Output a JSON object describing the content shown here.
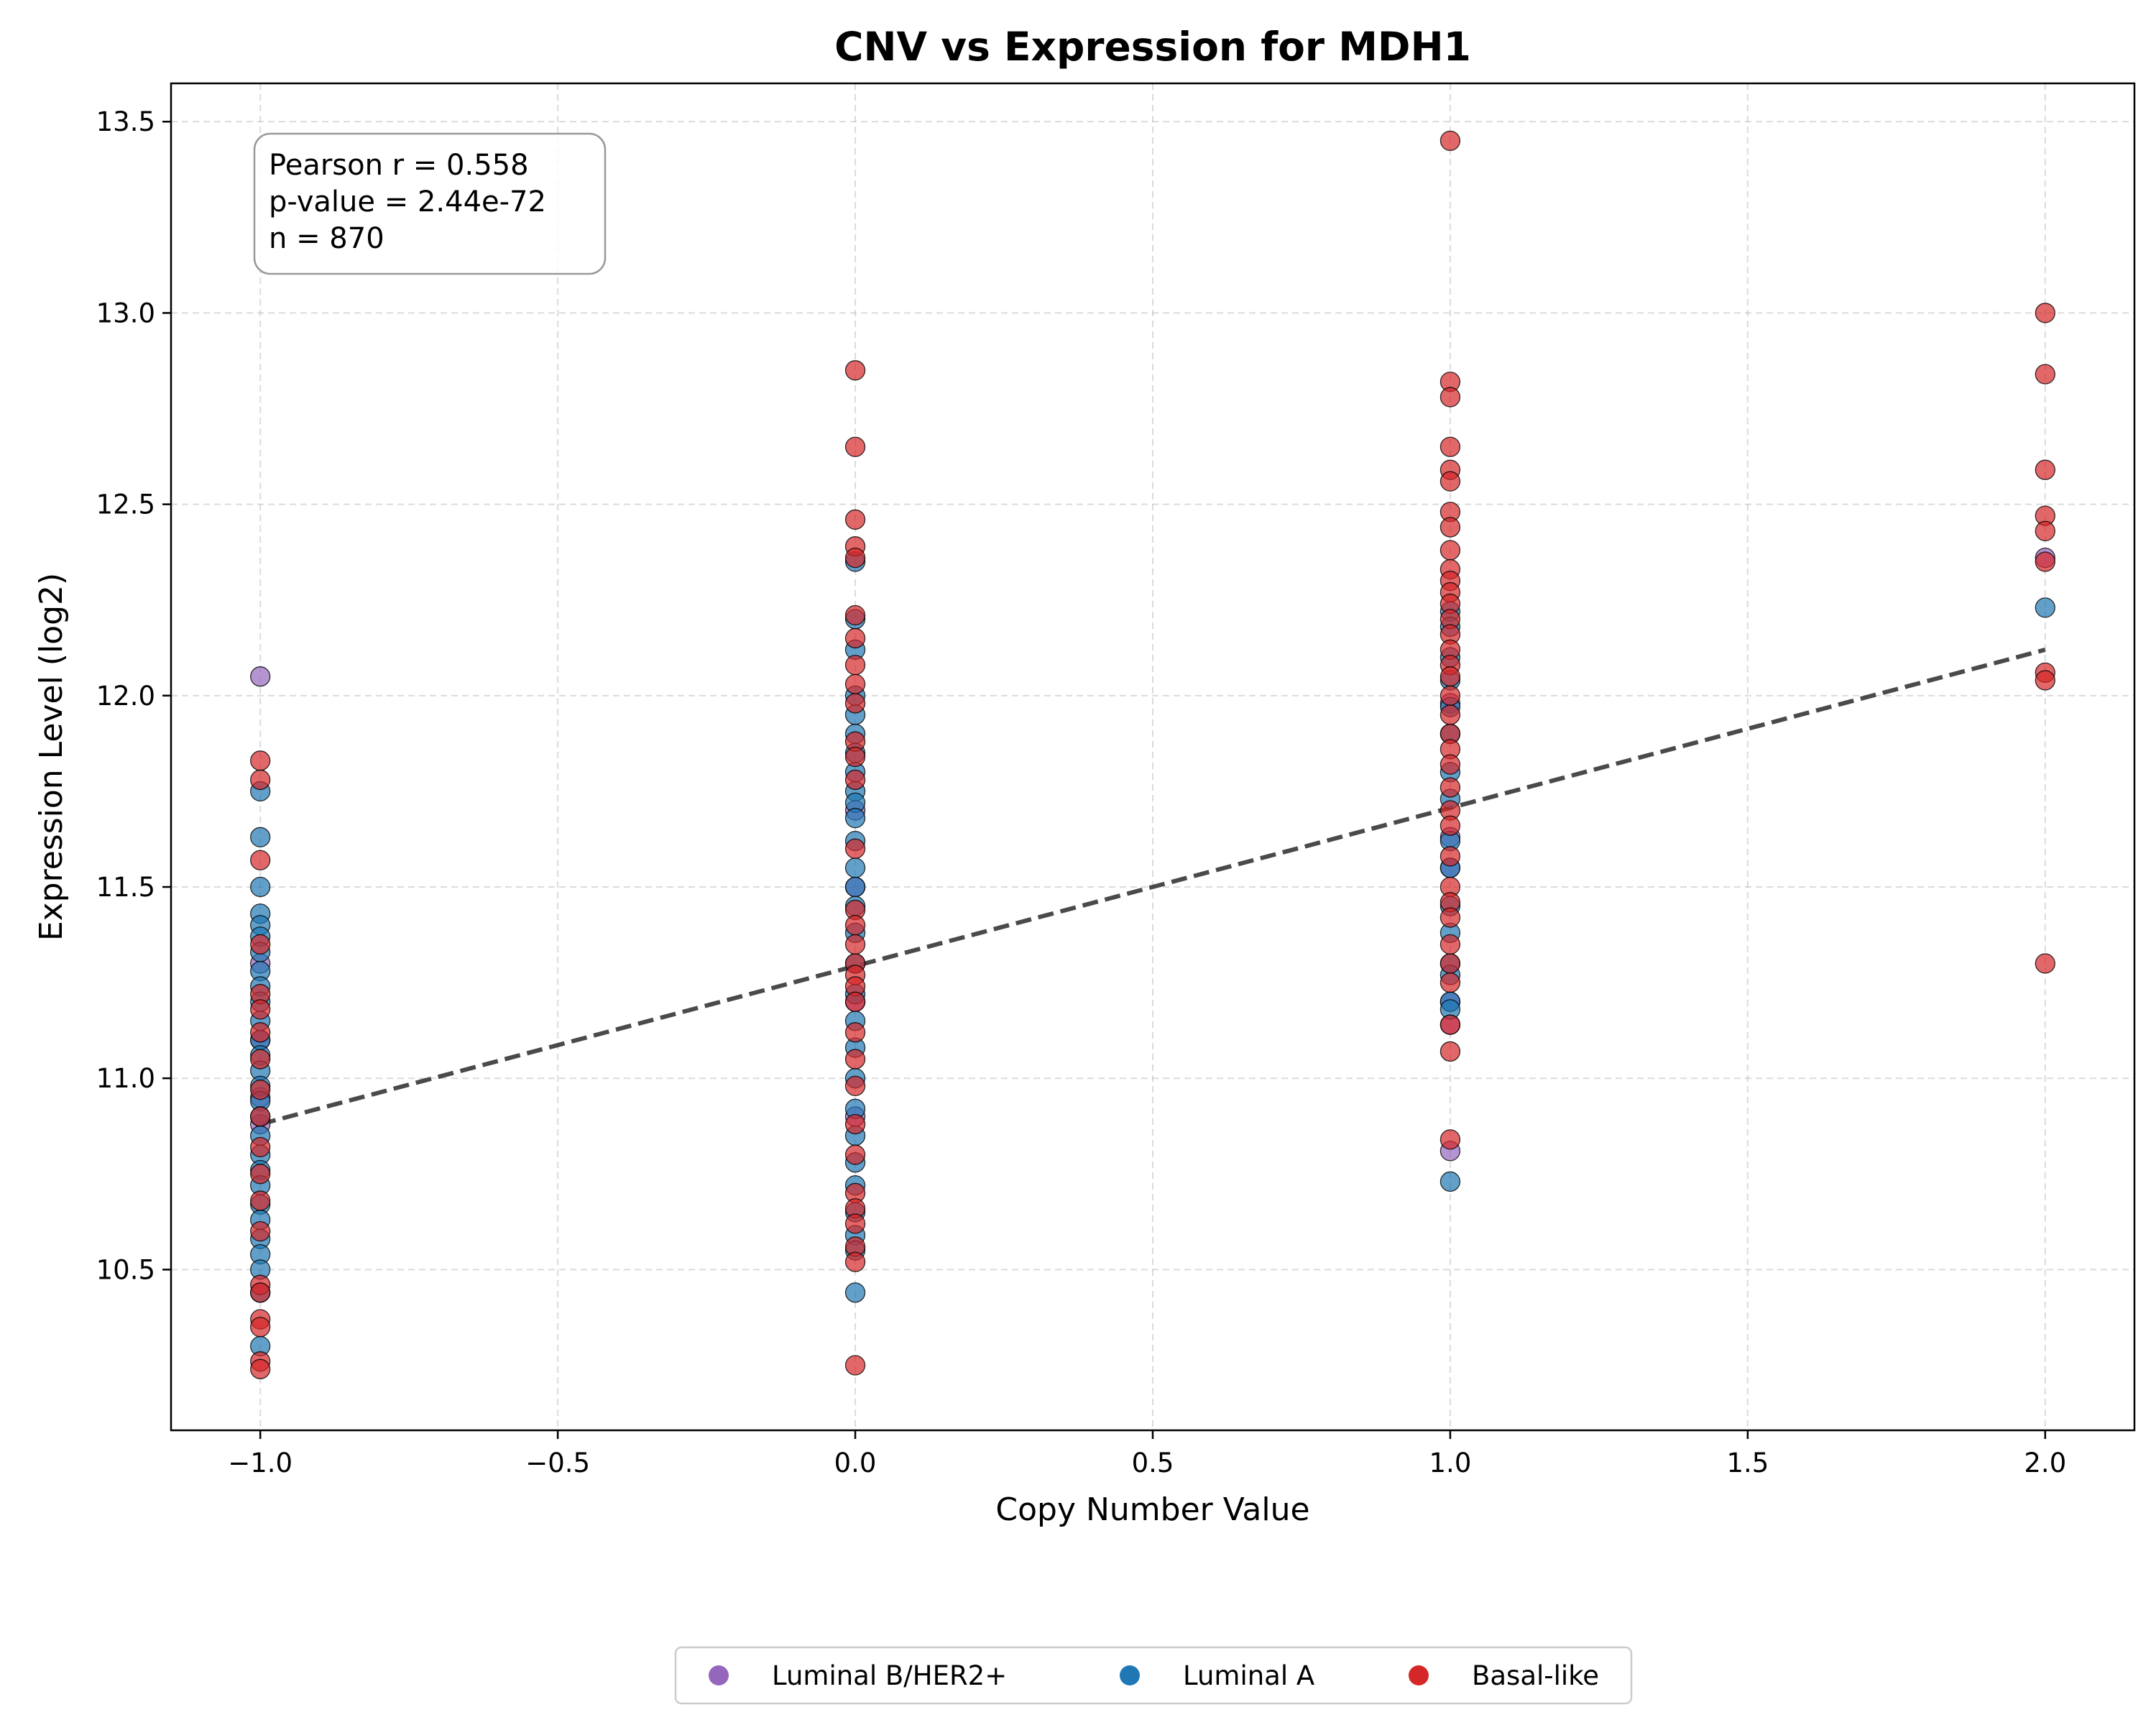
{
  "chart_data": {
    "type": "scatter",
    "title": "CNV vs Expression for MDH1",
    "xlabel": "Copy Number Value",
    "ylabel": "Expression Level (log2)",
    "xlim": [
      -1.15,
      2.15
    ],
    "ylim": [
      10.08,
      13.6
    ],
    "xticks": [
      -1.0,
      -0.5,
      0.0,
      0.5,
      1.0,
      1.5,
      2.0
    ],
    "xtick_labels": [
      "−1.0",
      "−0.5",
      "0.0",
      "0.5",
      "1.0",
      "1.5",
      "2.0"
    ],
    "yticks": [
      10.5,
      11.0,
      11.5,
      12.0,
      12.5,
      13.0,
      13.5
    ],
    "ytick_labels": [
      "10.5",
      "11.0",
      "11.5",
      "12.0",
      "12.5",
      "13.0",
      "13.5"
    ],
    "grid": true,
    "legend_position": "bottom-center",
    "stats": {
      "pearson": "Pearson r = 0.558",
      "pvalue": "p-value = 2.44e-72",
      "n": "n = 870"
    },
    "trend_line": {
      "x": [
        -1.0,
        2.0
      ],
      "y": [
        10.88,
        12.12
      ],
      "color": "#404040",
      "style": "dashed"
    },
    "series": [
      {
        "name": "Luminal B/HER2+",
        "color": "#9467bd",
        "points": [
          [
            -1,
            12.05
          ],
          [
            -1,
            10.88
          ],
          [
            -1,
            11.3
          ],
          [
            -1,
            10.95
          ],
          [
            -1,
            11.1
          ],
          [
            0,
            11.7
          ],
          [
            0,
            11.2
          ],
          [
            0,
            10.9
          ],
          [
            0,
            11.5
          ],
          [
            1,
            11.98
          ],
          [
            1,
            11.63
          ],
          [
            1,
            11.14
          ],
          [
            1,
            11.2
          ],
          [
            1,
            10.81
          ],
          [
            1,
            11.55
          ],
          [
            2,
            12.36
          ]
        ]
      },
      {
        "name": "Luminal A",
        "color": "#1f77b4",
        "points": [
          [
            -1,
            11.75
          ],
          [
            -1,
            11.63
          ],
          [
            -1,
            11.5
          ],
          [
            -1,
            11.43
          ],
          [
            -1,
            11.4
          ],
          [
            -1,
            11.37
          ],
          [
            -1,
            11.33
          ],
          [
            -1,
            11.28
          ],
          [
            -1,
            11.24
          ],
          [
            -1,
            11.2
          ],
          [
            -1,
            11.15
          ],
          [
            -1,
            11.1
          ],
          [
            -1,
            11.06
          ],
          [
            -1,
            11.02
          ],
          [
            -1,
            10.98
          ],
          [
            -1,
            10.94
          ],
          [
            -1,
            10.9
          ],
          [
            -1,
            10.85
          ],
          [
            -1,
            10.8
          ],
          [
            -1,
            10.76
          ],
          [
            -1,
            10.72
          ],
          [
            -1,
            10.67
          ],
          [
            -1,
            10.63
          ],
          [
            -1,
            10.58
          ],
          [
            -1,
            10.54
          ],
          [
            -1,
            10.5
          ],
          [
            -1,
            10.44
          ],
          [
            -1,
            10.3
          ],
          [
            0,
            12.35
          ],
          [
            0,
            12.2
          ],
          [
            0,
            12.12
          ],
          [
            0,
            12.0
          ],
          [
            0,
            11.95
          ],
          [
            0,
            11.9
          ],
          [
            0,
            11.85
          ],
          [
            0,
            11.8
          ],
          [
            0,
            11.75
          ],
          [
            0,
            11.72
          ],
          [
            0,
            11.68
          ],
          [
            0,
            11.62
          ],
          [
            0,
            11.55
          ],
          [
            0,
            11.5
          ],
          [
            0,
            11.45
          ],
          [
            0,
            11.38
          ],
          [
            0,
            11.3
          ],
          [
            0,
            11.22
          ],
          [
            0,
            11.15
          ],
          [
            0,
            11.08
          ],
          [
            0,
            11.0
          ],
          [
            0,
            10.92
          ],
          [
            0,
            10.85
          ],
          [
            0,
            10.78
          ],
          [
            0,
            10.72
          ],
          [
            0,
            10.65
          ],
          [
            0,
            10.59
          ],
          [
            0,
            10.55
          ],
          [
            0,
            10.44
          ],
          [
            1,
            12.22
          ],
          [
            1,
            12.18
          ],
          [
            1,
            12.1
          ],
          [
            1,
            12.04
          ],
          [
            1,
            11.97
          ],
          [
            1,
            11.9
          ],
          [
            1,
            11.8
          ],
          [
            1,
            11.73
          ],
          [
            1,
            11.62
          ],
          [
            1,
            11.55
          ],
          [
            1,
            11.45
          ],
          [
            1,
            11.38
          ],
          [
            1,
            11.3
          ],
          [
            1,
            11.27
          ],
          [
            1,
            11.2
          ],
          [
            1,
            11.18
          ],
          [
            1,
            10.73
          ],
          [
            2,
            12.23
          ]
        ]
      },
      {
        "name": "Basal-like",
        "color": "#d62728",
        "points": [
          [
            -1,
            11.83
          ],
          [
            -1,
            11.78
          ],
          [
            -1,
            11.57
          ],
          [
            -1,
            11.35
          ],
          [
            -1,
            11.22
          ],
          [
            -1,
            11.18
          ],
          [
            -1,
            11.12
          ],
          [
            -1,
            11.05
          ],
          [
            -1,
            10.97
          ],
          [
            -1,
            10.9
          ],
          [
            -1,
            10.82
          ],
          [
            -1,
            10.75
          ],
          [
            -1,
            10.68
          ],
          [
            -1,
            10.6
          ],
          [
            -1,
            10.46
          ],
          [
            -1,
            10.44
          ],
          [
            -1,
            10.37
          ],
          [
            -1,
            10.35
          ],
          [
            -1,
            10.26
          ],
          [
            -1,
            10.24
          ],
          [
            0,
            12.85
          ],
          [
            0,
            12.65
          ],
          [
            0,
            12.46
          ],
          [
            0,
            12.39
          ],
          [
            0,
            12.36
          ],
          [
            0,
            12.21
          ],
          [
            0,
            12.15
          ],
          [
            0,
            12.08
          ],
          [
            0,
            12.03
          ],
          [
            0,
            11.98
          ],
          [
            0,
            11.88
          ],
          [
            0,
            11.84
          ],
          [
            0,
            11.78
          ],
          [
            0,
            11.6
          ],
          [
            0,
            11.44
          ],
          [
            0,
            11.4
          ],
          [
            0,
            11.35
          ],
          [
            0,
            11.3
          ],
          [
            0,
            11.27
          ],
          [
            0,
            11.24
          ],
          [
            0,
            11.2
          ],
          [
            0,
            11.12
          ],
          [
            0,
            11.05
          ],
          [
            0,
            10.98
          ],
          [
            0,
            10.88
          ],
          [
            0,
            10.8
          ],
          [
            0,
            10.7
          ],
          [
            0,
            10.66
          ],
          [
            0,
            10.62
          ],
          [
            0,
            10.56
          ],
          [
            0,
            10.52
          ],
          [
            0,
            10.25
          ],
          [
            1,
            13.45
          ],
          [
            1,
            12.82
          ],
          [
            1,
            12.78
          ],
          [
            1,
            12.65
          ],
          [
            1,
            12.59
          ],
          [
            1,
            12.56
          ],
          [
            1,
            12.48
          ],
          [
            1,
            12.44
          ],
          [
            1,
            12.38
          ],
          [
            1,
            12.33
          ],
          [
            1,
            12.3
          ],
          [
            1,
            12.27
          ],
          [
            1,
            12.24
          ],
          [
            1,
            12.2
          ],
          [
            1,
            12.16
          ],
          [
            1,
            12.12
          ],
          [
            1,
            12.08
          ],
          [
            1,
            12.05
          ],
          [
            1,
            12.0
          ],
          [
            1,
            11.95
          ],
          [
            1,
            11.9
          ],
          [
            1,
            11.86
          ],
          [
            1,
            11.82
          ],
          [
            1,
            11.76
          ],
          [
            1,
            11.7
          ],
          [
            1,
            11.66
          ],
          [
            1,
            11.58
          ],
          [
            1,
            11.5
          ],
          [
            1,
            11.46
          ],
          [
            1,
            11.42
          ],
          [
            1,
            11.35
          ],
          [
            1,
            11.3
          ],
          [
            1,
            11.25
          ],
          [
            1,
            11.14
          ],
          [
            1,
            11.07
          ],
          [
            1,
            10.84
          ],
          [
            2,
            13.0
          ],
          [
            2,
            12.84
          ],
          [
            2,
            12.59
          ],
          [
            2,
            12.47
          ],
          [
            2,
            12.43
          ],
          [
            2,
            12.35
          ],
          [
            2,
            12.06
          ],
          [
            2,
            12.04
          ],
          [
            2,
            11.3
          ]
        ]
      }
    ]
  }
}
